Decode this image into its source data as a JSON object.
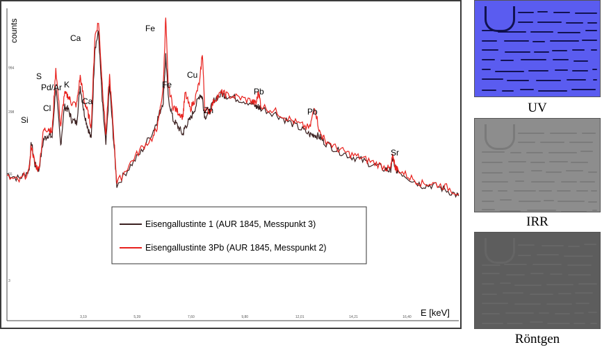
{
  "chart_data": {
    "type": "line",
    "xlabel": "E [keV]",
    "ylabel": "counts",
    "x_tick_labels": [
      "3,19",
      "5,39",
      "7,60",
      "9,80",
      "12,01",
      "14,21",
      "16,40"
    ],
    "y_tick_labels": [
      "994",
      "298",
      "55",
      "3"
    ],
    "xlim": [
      0,
      18.5
    ],
    "ylim": [
      1,
      5000
    ],
    "y_scale": "log",
    "grid": false,
    "legend_position": "center-bottom",
    "series": [
      {
        "name": "Eisengallustinte 1 (AUR 1845, Messpunkt 3)",
        "color": "#3a1f1f",
        "x": [
          0.0,
          0.5,
          0.9,
          1.0,
          1.15,
          1.3,
          1.5,
          1.7,
          1.85,
          2.0,
          2.2,
          2.35,
          2.5,
          2.65,
          2.85,
          3.0,
          3.15,
          3.3,
          3.45,
          3.6,
          3.75,
          3.9,
          4.05,
          4.2,
          4.35,
          4.5,
          5.0,
          5.5,
          6.0,
          6.2,
          6.4,
          6.5,
          6.6,
          6.8,
          7.0,
          7.2,
          7.3,
          7.5,
          7.7,
          7.9,
          8.0,
          8.1,
          8.3,
          8.5,
          8.8,
          9.0,
          9.5,
          10.0,
          10.2,
          10.3,
          10.4,
          11.0,
          11.5,
          12.0,
          12.4,
          12.6,
          12.8,
          13.0,
          13.5,
          14.0,
          14.5,
          15.0,
          15.5,
          15.7,
          15.8,
          15.9,
          16.0,
          16.5,
          17.0,
          17.5,
          18.0,
          18.5
        ],
        "y": [
          55,
          48,
          60,
          130,
          70,
          60,
          140,
          160,
          150,
          600,
          120,
          340,
          320,
          240,
          220,
          600,
          300,
          200,
          140,
          1700,
          2600,
          400,
          120,
          620,
          160,
          40,
          65,
          100,
          180,
          260,
          400,
          1400,
          450,
          240,
          200,
          160,
          200,
          240,
          330,
          480,
          440,
          260,
          300,
          420,
          480,
          460,
          420,
          380,
          340,
          340,
          330,
          280,
          230,
          190,
          160,
          160,
          150,
          130,
          105,
          90,
          80,
          70,
          62,
          60,
          85,
          62,
          60,
          48,
          40,
          40,
          35,
          30
        ]
      },
      {
        "name": "Eisengallustinte 3Pb (AUR 1845, Messpunkt 2)",
        "color": "#e8201c",
        "x": [
          0.0,
          0.5,
          0.9,
          1.0,
          1.15,
          1.3,
          1.5,
          1.7,
          1.85,
          2.0,
          2.2,
          2.35,
          2.5,
          2.65,
          2.85,
          3.0,
          3.15,
          3.3,
          3.45,
          3.6,
          3.75,
          3.9,
          4.05,
          4.2,
          4.35,
          4.5,
          5.0,
          5.5,
          6.0,
          6.2,
          6.4,
          6.5,
          6.6,
          6.8,
          7.0,
          7.2,
          7.3,
          7.5,
          7.7,
          7.9,
          8.0,
          8.1,
          8.3,
          8.5,
          8.8,
          9.0,
          9.5,
          10.0,
          10.2,
          10.3,
          10.4,
          11.0,
          11.5,
          12.0,
          12.4,
          12.6,
          12.8,
          13.0,
          13.5,
          14.0,
          14.5,
          15.0,
          15.5,
          15.7,
          15.8,
          15.9,
          16.0,
          16.5,
          17.0,
          17.5,
          18.0,
          18.5
        ],
        "y": [
          50,
          45,
          58,
          120,
          70,
          62,
          180,
          190,
          170,
          1000,
          200,
          480,
          460,
          380,
          360,
          780,
          420,
          300,
          200,
          2300,
          3500,
          650,
          160,
          800,
          200,
          42,
          70,
          110,
          150,
          220,
          600,
          3900,
          620,
          340,
          300,
          260,
          500,
          320,
          420,
          700,
          1500,
          320,
          300,
          420,
          500,
          470,
          440,
          400,
          370,
          520,
          350,
          300,
          250,
          210,
          190,
          350,
          170,
          140,
          110,
          95,
          85,
          75,
          65,
          62,
          90,
          66,
          62,
          50,
          42,
          42,
          38,
          32
        ]
      }
    ],
    "annotations": [
      "Si",
      "S",
      "Pd/Ar",
      "Cl",
      "K",
      "Ca",
      "Ca",
      "Fe",
      "Fe",
      "Cu",
      "Zn",
      "Pb",
      "Pb",
      "Sr"
    ]
  },
  "panels": {
    "uv_label": "UV",
    "irr_label": "IRR",
    "xray_label": "Röntgen"
  }
}
